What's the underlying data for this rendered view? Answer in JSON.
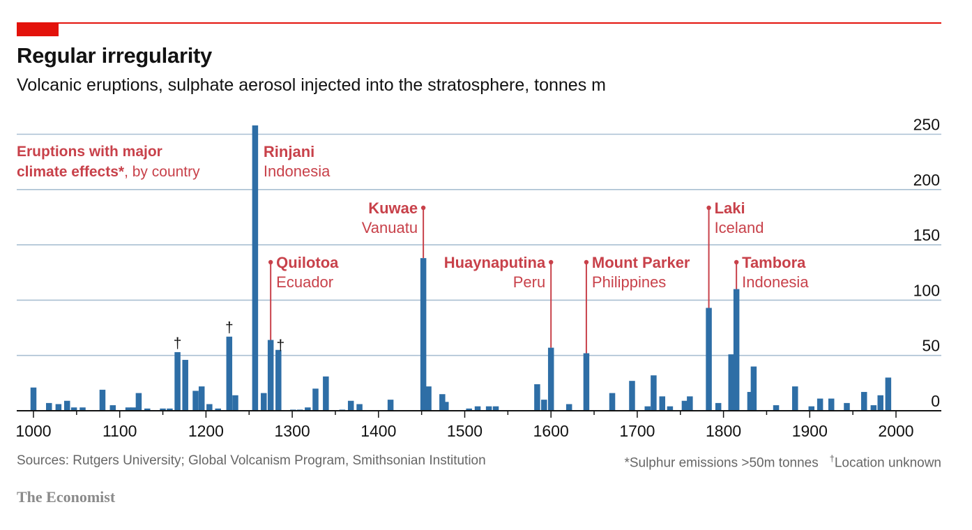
{
  "header": {
    "title": "Regular irregularity",
    "subtitle": "Volcanic eruptions, sulphate aerosol injected into the stratosphere, tonnes m"
  },
  "legend": {
    "strong": "Eruptions with major climate effects*",
    "rest": ", by country"
  },
  "footer": {
    "sources": "Sources: Rutgers University; Global Volcanism Program, Smithsonian Institution",
    "footnote_star": "*Sulphur emissions >50m tonnes",
    "footnote_dagger_mark": "†",
    "footnote_dagger": "Location unknown",
    "brand": "The Economist"
  },
  "colors": {
    "bar": "#2e6ea6",
    "highlight": "#c8414a",
    "grid": "#a9bfd2",
    "axis": "#121212",
    "brand_red": "#e3120b"
  },
  "chart_data": {
    "type": "bar",
    "xlabel": "",
    "ylabel": "",
    "xlim": [
      1000,
      2000
    ],
    "ylim": [
      0,
      260
    ],
    "yticks": [
      0,
      50,
      100,
      150,
      200,
      250
    ],
    "xticks": [
      1000,
      1100,
      1200,
      1300,
      1400,
      1500,
      1600,
      1700,
      1800,
      1900,
      2000
    ],
    "grid": true,
    "y_axis_position": "right",
    "bars": [
      {
        "x": 1000,
        "value": 21
      },
      {
        "x": 1018,
        "value": 7
      },
      {
        "x": 1029,
        "value": 6
      },
      {
        "x": 1039,
        "value": 9
      },
      {
        "x": 1047,
        "value": 3
      },
      {
        "x": 1057,
        "value": 3
      },
      {
        "x": 1080,
        "value": 19
      },
      {
        "x": 1092,
        "value": 5
      },
      {
        "x": 1110,
        "value": 3
      },
      {
        "x": 1116,
        "value": 3
      },
      {
        "x": 1122,
        "value": 16
      },
      {
        "x": 1132,
        "value": 2
      },
      {
        "x": 1150,
        "value": 2
      },
      {
        "x": 1158,
        "value": 2
      },
      {
        "x": 1167,
        "value": 53
      },
      {
        "x": 1176,
        "value": 46
      },
      {
        "x": 1188,
        "value": 18
      },
      {
        "x": 1195,
        "value": 22
      },
      {
        "x": 1204,
        "value": 6
      },
      {
        "x": 1214,
        "value": 2
      },
      {
        "x": 1227,
        "value": 67
      },
      {
        "x": 1234,
        "value": 14
      },
      {
        "x": 1257,
        "value": 258
      },
      {
        "x": 1267,
        "value": 16
      },
      {
        "x": 1275,
        "value": 64
      },
      {
        "x": 1284,
        "value": 55
      },
      {
        "x": 1301,
        "value": 1
      },
      {
        "x": 1309,
        "value": 1
      },
      {
        "x": 1318,
        "value": 3
      },
      {
        "x": 1327,
        "value": 20
      },
      {
        "x": 1339,
        "value": 31
      },
      {
        "x": 1358,
        "value": 1
      },
      {
        "x": 1368,
        "value": 9
      },
      {
        "x": 1378,
        "value": 6
      },
      {
        "x": 1414,
        "value": 10
      },
      {
        "x": 1452,
        "value": 138
      },
      {
        "x": 1458,
        "value": 22
      },
      {
        "x": 1474,
        "value": 15
      },
      {
        "x": 1478,
        "value": 8
      },
      {
        "x": 1505,
        "value": 2
      },
      {
        "x": 1515,
        "value": 4
      },
      {
        "x": 1528,
        "value": 4
      },
      {
        "x": 1536,
        "value": 4
      },
      {
        "x": 1584,
        "value": 24
      },
      {
        "x": 1592,
        "value": 10
      },
      {
        "x": 1600,
        "value": 57
      },
      {
        "x": 1621,
        "value": 6
      },
      {
        "x": 1641,
        "value": 52
      },
      {
        "x": 1671,
        "value": 16
      },
      {
        "x": 1694,
        "value": 27
      },
      {
        "x": 1712,
        "value": 4
      },
      {
        "x": 1719,
        "value": 32
      },
      {
        "x": 1729,
        "value": 13
      },
      {
        "x": 1738,
        "value": 4
      },
      {
        "x": 1755,
        "value": 9
      },
      {
        "x": 1761,
        "value": 13
      },
      {
        "x": 1783,
        "value": 93
      },
      {
        "x": 1794,
        "value": 7
      },
      {
        "x": 1809,
        "value": 51
      },
      {
        "x": 1815,
        "value": 110
      },
      {
        "x": 1831,
        "value": 17
      },
      {
        "x": 1835,
        "value": 40
      },
      {
        "x": 1861,
        "value": 5
      },
      {
        "x": 1883,
        "value": 22
      },
      {
        "x": 1902,
        "value": 4
      },
      {
        "x": 1912,
        "value": 11
      },
      {
        "x": 1925,
        "value": 11
      },
      {
        "x": 1943,
        "value": 7
      },
      {
        "x": 1963,
        "value": 17
      },
      {
        "x": 1974,
        "value": 5
      },
      {
        "x": 1982,
        "value": 14
      },
      {
        "x": 1991,
        "value": 30
      }
    ],
    "annotations": [
      {
        "name": "Rinjani",
        "country": "Indonesia",
        "x": 1257,
        "side": "right",
        "leader": false
      },
      {
        "name": "Quilotoa",
        "country": "Ecuador",
        "x": 1275,
        "side": "right",
        "leader": true
      },
      {
        "name": "Kuwae",
        "country": "Vanuatu",
        "x": 1452,
        "side": "left",
        "leader": true
      },
      {
        "name": "Huaynaputina",
        "country": "Peru",
        "x": 1600,
        "side": "left",
        "leader": true
      },
      {
        "name": "Mount Parker",
        "country": "Philippines",
        "x": 1641,
        "side": "right",
        "leader": true
      },
      {
        "name": "Laki",
        "country": "Iceland",
        "x": 1783,
        "side": "right",
        "leader": true
      },
      {
        "name": "Tambora",
        "country": "Indonesia",
        "x": 1815,
        "side": "right",
        "leader": true
      }
    ],
    "daggers": [
      {
        "symbol": "†",
        "x": 1167,
        "value": 53
      },
      {
        "symbol": "†",
        "x": 1227,
        "value": 67
      },
      {
        "symbol": "†",
        "x": 1284,
        "value": 55
      }
    ]
  }
}
